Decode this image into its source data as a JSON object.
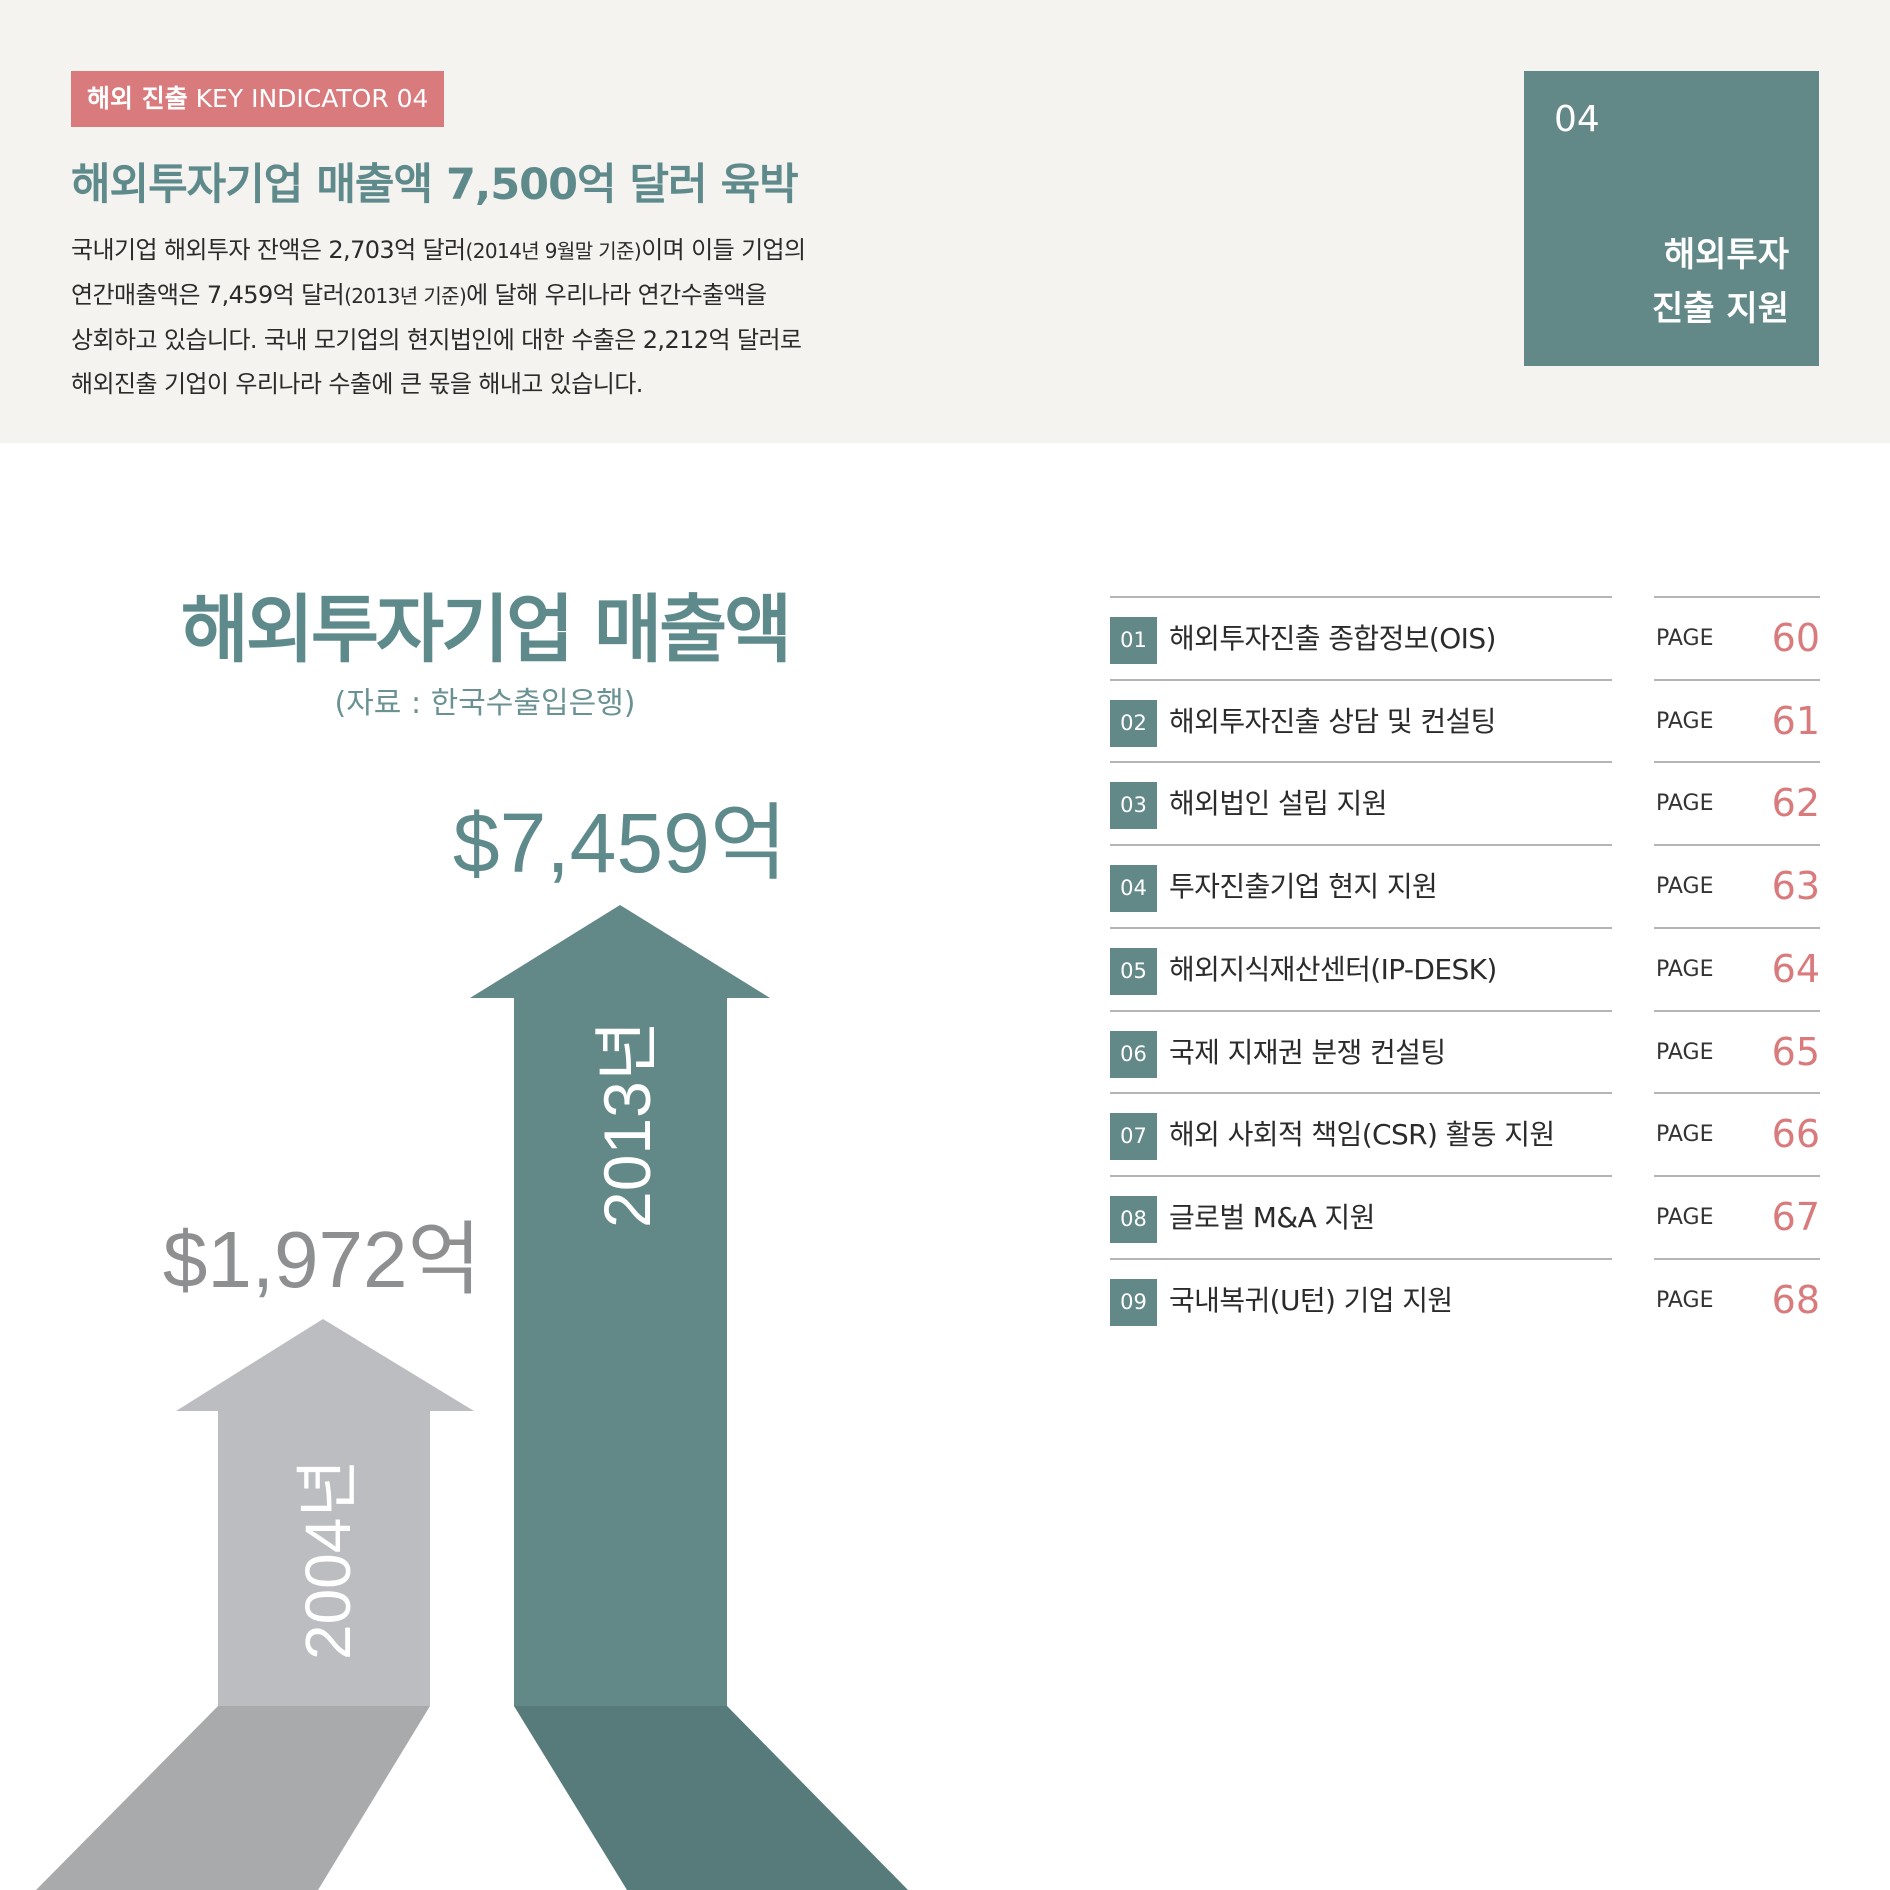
{
  "header": {
    "tag_strong": "해외 진출",
    "tag_rest": " KEY INDICATOR 04",
    "headline": "해외투자기업 매출액 7,500억 달러 육박",
    "body": {
      "l1a": "국내기업 해외투자 잔액은 2,703억 달러",
      "l1b": "(2014년 9월말 기준)",
      "l1c": "이며 이들 기업의",
      "l2a": "연간매출액은 7,459억 달러",
      "l2b": "(2013년 기준)",
      "l2c": "에 달해 우리나라 연간수출액을",
      "l3": "상회하고 있습니다. 국내 모기업의 현지법인에 대한 수출은 2,212억 달러로",
      "l4": "해외진출 기업이 우리나라 수출에 큰 몫을 해내고 있습니다."
    }
  },
  "section_box": {
    "num": "04",
    "label_line1": "해외투자",
    "label_line2": "진출 지원"
  },
  "chart": {
    "title": "해외투자기업 매출액",
    "source": "(자료 : 한국수출입은행)",
    "colors": {
      "2004": "#bcbdc0",
      "2004_shadow": "#a9aaac",
      "2013": "#638888",
      "2013_shadow": "#577a7a"
    }
  },
  "chart_data": {
    "type": "bar",
    "title": "해외투자기업 매출액",
    "categories": [
      "2004년",
      "2013년"
    ],
    "values": [
      1972,
      7459
    ],
    "value_labels": [
      "$1,972억",
      "$7,459억"
    ]
  },
  "toc": {
    "page_label": "PAGE",
    "items": [
      {
        "num": "01",
        "title": "해외투자진출 종합정보(OIS)",
        "page": "60"
      },
      {
        "num": "02",
        "title": "해외투자진출 상담 및 컨설팅",
        "page": "61"
      },
      {
        "num": "03",
        "title": "해외법인 설립 지원",
        "page": "62"
      },
      {
        "num": "04",
        "title": "투자진출기업 현지 지원",
        "page": "63"
      },
      {
        "num": "05",
        "title": "해외지식재산센터(IP-DESK)",
        "page": "64"
      },
      {
        "num": "06",
        "title": "국제 지재권 분쟁 컨설팅",
        "page": "65"
      },
      {
        "num": "07",
        "title": "해외 사회적 책임(CSR) 활동 지원",
        "page": "66"
      },
      {
        "num": "08",
        "title": "글로벌 M&A 지원",
        "page": "67"
      },
      {
        "num": "09",
        "title": "국내복귀(U턴) 기업 지원",
        "page": "68"
      }
    ]
  }
}
